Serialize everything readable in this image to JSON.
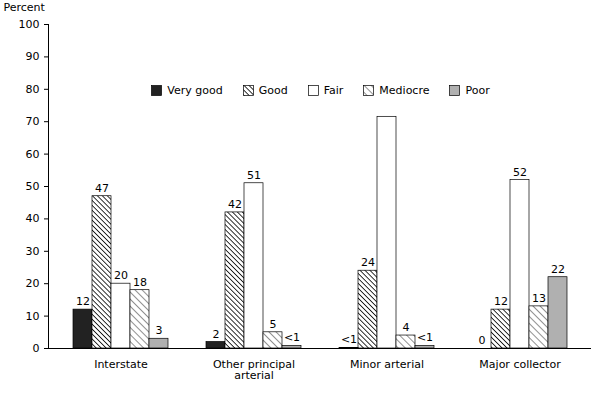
{
  "chart_data": {
    "type": "bar",
    "y_label": "Percent",
    "categories": [
      "Interstate",
      "Other principal arterial",
      "Minor arterial",
      "Major collector"
    ],
    "series": [
      {
        "name": "Very good",
        "color": "#222222",
        "values": [
          12,
          2,
          0.2,
          0
        ],
        "value_labels": [
          "12",
          "2",
          "<1",
          "0"
        ]
      },
      {
        "name": "Good",
        "color": "#000000",
        "values": [
          47,
          42,
          24,
          12
        ],
        "value_labels": [
          "47",
          "42",
          "24",
          "12"
        ]
      },
      {
        "name": "Fair",
        "color": "#ffffff",
        "values": [
          20,
          51,
          71.5,
          52
        ],
        "value_labels": [
          "20",
          "51",
          null,
          "52"
        ]
      },
      {
        "name": "Mediocre",
        "color": "#555555",
        "values": [
          18,
          5,
          4,
          13
        ],
        "value_labels": [
          "18",
          "5",
          "4",
          "13"
        ]
      },
      {
        "name": "Poor",
        "color": "#b0b0b0",
        "values": [
          3,
          0.8,
          0.8,
          22
        ],
        "value_labels": [
          "3",
          "<1",
          "<1",
          "22"
        ]
      }
    ],
    "ylim": [
      0,
      100
    ],
    "yticks": [
      0,
      10,
      20,
      30,
      40,
      50,
      60,
      70,
      80,
      90,
      100
    ],
    "grid": false,
    "legend": "top",
    "data_labels": true
  }
}
